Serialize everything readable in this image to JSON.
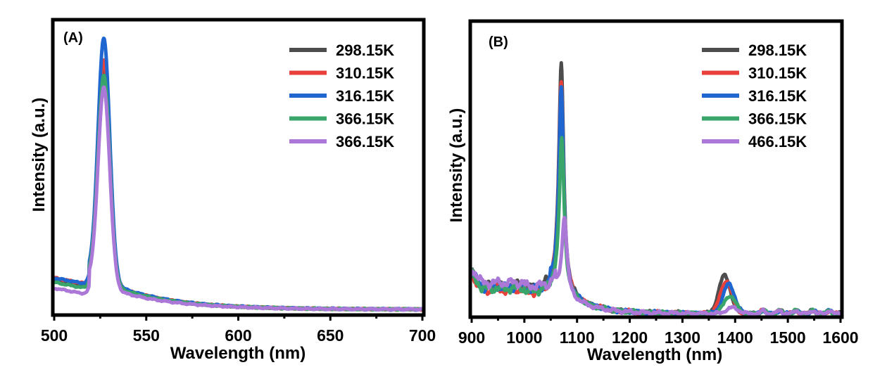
{
  "figure": {
    "description": "Emission spectra at different temperatures, two panels",
    "note": "Curve shapes are approximate reconstructions from the image, not measured data. Panel A legend shows 366.15K twice as rendered in the source."
  },
  "chart_data": [
    {
      "type": "line",
      "panel_label": "(A)",
      "title": "",
      "xlabel": "Wavelength (nm)",
      "ylabel": "Intensity (a.u.)",
      "xlim": [
        500,
        700
      ],
      "ylim": [
        0,
        1
      ],
      "x_ticks": [
        500,
        550,
        600,
        650,
        700
      ],
      "x_tick_labels": [
        "500",
        "550",
        "600",
        "650",
        "700"
      ],
      "x_minor_ticks": [
        525,
        575,
        625,
        675
      ],
      "y_ticks_shown": false,
      "grid": false,
      "legend_position": "top-right",
      "series": [
        {
          "name": "298.15K",
          "color": "#4d4d4d",
          "peak_center": 527,
          "peak_height": 0.74,
          "baseline_start": 0.115,
          "shoulder": 0.08
        },
        {
          "name": "310.15K",
          "color": "#e8413c",
          "peak_center": 527,
          "peak_height": 0.76,
          "baseline_start": 0.12,
          "shoulder": 0.08
        },
        {
          "name": "316.15K",
          "color": "#1f66d1",
          "peak_center": 527,
          "peak_height": 0.83,
          "baseline_start": 0.12,
          "shoulder": 0.082
        },
        {
          "name": "366.15K",
          "color": "#3aa56a",
          "peak_center": 527,
          "peak_height": 0.71,
          "baseline_start": 0.105,
          "shoulder": 0.076
        },
        {
          "name": "366.15K",
          "color": "#ab78d8",
          "peak_center": 527,
          "peak_height": 0.68,
          "baseline_start": 0.085,
          "shoulder": 0.066
        }
      ]
    },
    {
      "type": "line",
      "panel_label": "(B)",
      "title": "",
      "xlabel": "Wavelength (nm)",
      "ylabel": "Intensity (a.u.)",
      "xlim": [
        900,
        1600
      ],
      "ylim": [
        0,
        1
      ],
      "x_ticks": [
        900,
        1000,
        1100,
        1200,
        1300,
        1400,
        1500,
        1600
      ],
      "x_tick_labels": [
        "900",
        "1000",
        "1100",
        "1200",
        "1300",
        "1400",
        "1500",
        "1600"
      ],
      "x_minor_ticks": [
        950,
        1050,
        1150,
        1250,
        1350,
        1450,
        1550
      ],
      "y_ticks_shown": false,
      "grid": false,
      "legend_position": "top-right",
      "series": [
        {
          "name": "298.15K",
          "color": "#4d4d4d",
          "main_peak_center": 1070,
          "main_peak_height": 0.78,
          "second_peak_center": 1380,
          "second_peak_height": 0.13,
          "baseline": 0.1
        },
        {
          "name": "310.15K",
          "color": "#e8413c",
          "main_peak_center": 1070,
          "main_peak_height": 0.72,
          "second_peak_center": 1383,
          "second_peak_height": 0.11,
          "baseline": 0.085
        },
        {
          "name": "316.15K",
          "color": "#1f66d1",
          "main_peak_center": 1070,
          "main_peak_height": 0.7,
          "second_peak_center": 1388,
          "second_peak_height": 0.1,
          "baseline": 0.095
        },
        {
          "name": "366.15K",
          "color": "#3aa56a",
          "main_peak_center": 1071,
          "main_peak_height": 0.53,
          "second_peak_center": 1390,
          "second_peak_height": 0.06,
          "baseline": 0.09
        },
        {
          "name": "466.15K",
          "color": "#ab78d8",
          "main_peak_center": 1076,
          "main_peak_height": 0.27,
          "second_peak_center": 1395,
          "second_peak_height": 0.02,
          "baseline": 0.11
        }
      ]
    }
  ]
}
